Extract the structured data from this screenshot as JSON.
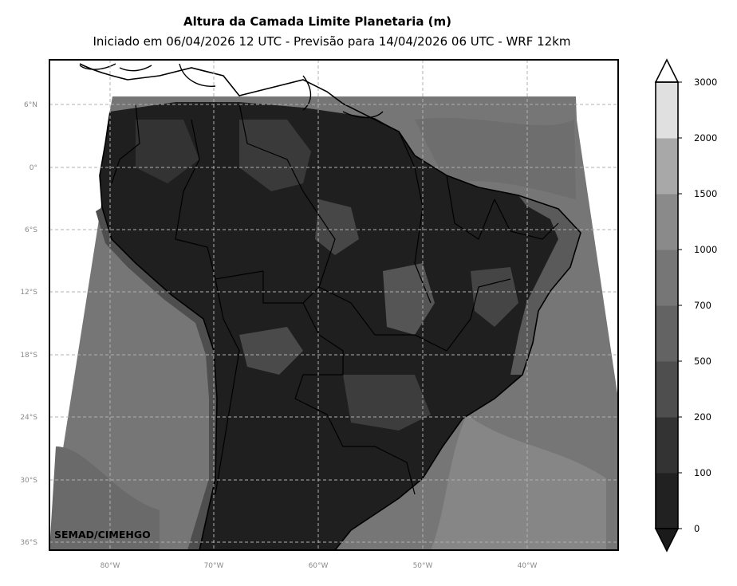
{
  "title": "Altura da Camada Limite Planetaria (m)",
  "subtitle": "Iniciado em 06/04/2026 12 UTC - Previsão para 14/04/2026 06 UTC - WRF 12km",
  "credit": "SEMAD/CIMEHGO",
  "lat_labels": [
    "6°N",
    "0°",
    "6°S",
    "12°S",
    "18°S",
    "24°S",
    "30°S",
    "36°S"
  ],
  "lon_labels": [
    "80°W",
    "70°W",
    "60°W",
    "50°W",
    "40°W"
  ],
  "colorbar": {
    "levels": [
      "0",
      "100",
      "200",
      "500",
      "700",
      "1000",
      "1500",
      "2000",
      "3000"
    ],
    "colors": [
      "#212121",
      "#333333",
      "#4e4e4e",
      "#636363",
      "#767676",
      "#8a8a8a",
      "#a8a8a8",
      "#e0e0e0"
    ],
    "extend": "both",
    "under_color": "#1a1a1a",
    "over_color": "#ffffff"
  },
  "map": {
    "ocean_color": "#767676",
    "land_color": "#1f1f1f",
    "gridline_color": "#b0b0b0",
    "gridlines": "dashed"
  }
}
